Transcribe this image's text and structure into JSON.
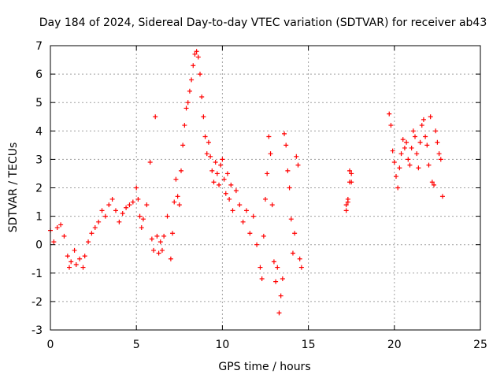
{
  "chart_data": {
    "type": "scatter",
    "title": "Day 184 of 2024, Sidereal Day-to-day VTEC variation (SDTVAR) for receiver ab43",
    "xlabel": "GPS time / hours",
    "ylabel": "SDTVAR / TECUs",
    "xlim": [
      0,
      25
    ],
    "ylim": [
      -3,
      7
    ],
    "x_ticks": [
      0,
      5,
      10,
      15,
      20,
      25
    ],
    "y_ticks": [
      -3,
      -2,
      -1,
      0,
      1,
      2,
      3,
      4,
      5,
      6,
      7
    ],
    "grid": true,
    "marker": "+",
    "color": "#ff0000",
    "series": [
      {
        "name": "SDTVAR",
        "x": [
          0.0,
          0.2,
          0.4,
          0.6,
          0.8,
          1.0,
          1.1,
          1.2,
          1.4,
          1.5,
          1.7,
          1.9,
          2.0,
          2.2,
          2.4,
          2.6,
          2.8,
          3.0,
          3.2,
          3.4,
          3.6,
          3.8,
          4.0,
          4.2,
          4.4,
          4.6,
          4.8,
          5.0,
          5.1,
          5.2,
          5.3,
          5.4,
          5.6,
          5.8,
          5.9,
          6.0,
          6.1,
          6.2,
          6.3,
          6.4,
          6.5,
          6.6,
          6.8,
          7.0,
          7.1,
          7.2,
          7.3,
          7.4,
          7.5,
          7.6,
          7.7,
          7.8,
          7.9,
          8.0,
          8.1,
          8.2,
          8.3,
          8.4,
          8.5,
          8.6,
          8.7,
          8.8,
          8.9,
          9.0,
          9.1,
          9.2,
          9.3,
          9.4,
          9.5,
          9.6,
          9.7,
          9.8,
          9.9,
          10.0,
          10.1,
          10.2,
          10.3,
          10.4,
          10.5,
          10.6,
          10.8,
          11.0,
          11.2,
          11.4,
          11.6,
          11.8,
          12.0,
          12.2,
          12.3,
          12.4,
          12.5,
          12.6,
          12.7,
          12.8,
          12.9,
          13.0,
          13.1,
          13.2,
          13.3,
          13.4,
          13.5,
          13.6,
          13.7,
          13.8,
          13.9,
          14.0,
          14.1,
          14.2,
          14.3,
          14.4,
          14.5,
          14.6,
          17.2,
          17.3,
          17.4,
          17.5,
          17.2,
          17.3,
          17.4,
          17.5,
          19.7,
          19.8,
          19.9,
          20.0,
          20.1,
          20.2,
          20.3,
          20.4,
          20.5,
          20.6,
          20.7,
          20.8,
          20.9,
          21.0,
          21.1,
          21.2,
          21.3,
          21.4,
          21.5,
          21.6,
          21.7,
          21.8,
          21.9,
          22.0,
          22.1,
          22.2,
          22.3,
          22.4,
          22.5,
          22.6,
          22.7,
          22.8
        ],
        "y": [
          0.5,
          0.1,
          0.6,
          0.7,
          0.3,
          -0.4,
          -0.8,
          -0.6,
          -0.2,
          -0.7,
          -0.5,
          -0.8,
          -0.4,
          0.1,
          0.4,
          0.6,
          0.8,
          1.2,
          1.0,
          1.4,
          1.6,
          1.2,
          0.8,
          1.1,
          1.3,
          1.4,
          1.5,
          2.0,
          1.6,
          1.0,
          0.6,
          0.9,
          1.4,
          2.9,
          0.2,
          -0.2,
          4.5,
          0.3,
          -0.3,
          0.1,
          -0.2,
          0.3,
          1.0,
          -0.5,
          0.4,
          1.5,
          2.3,
          1.7,
          1.4,
          2.6,
          3.5,
          4.2,
          4.8,
          5.0,
          5.4,
          5.8,
          6.3,
          6.7,
          6.8,
          6.6,
          6.0,
          5.2,
          4.5,
          3.8,
          3.2,
          3.6,
          3.1,
          2.6,
          2.2,
          2.9,
          2.5,
          2.1,
          2.8,
          3.0,
          2.3,
          1.8,
          2.5,
          1.6,
          2.1,
          1.2,
          1.9,
          1.4,
          0.8,
          1.2,
          0.4,
          1.0,
          0.0,
          -0.8,
          -1.2,
          0.3,
          1.6,
          2.5,
          3.8,
          3.2,
          1.4,
          -0.6,
          -1.3,
          -0.8,
          -2.4,
          -1.8,
          -1.2,
          3.9,
          3.5,
          2.6,
          2.0,
          0.9,
          -0.3,
          0.4,
          3.1,
          2.8,
          -0.5,
          -0.8,
          1.2,
          1.6,
          2.6,
          2.2,
          1.4,
          1.5,
          2.2,
          2.5,
          4.6,
          4.2,
          3.3,
          2.9,
          2.4,
          2.0,
          2.7,
          3.2,
          3.7,
          3.4,
          3.6,
          3.0,
          2.8,
          3.4,
          4.0,
          3.8,
          3.2,
          2.7,
          3.6,
          4.2,
          4.4,
          3.8,
          3.5,
          2.8,
          4.5,
          2.2,
          2.1,
          4.0,
          3.6,
          3.2,
          3.0,
          1.7
        ]
      }
    ]
  }
}
